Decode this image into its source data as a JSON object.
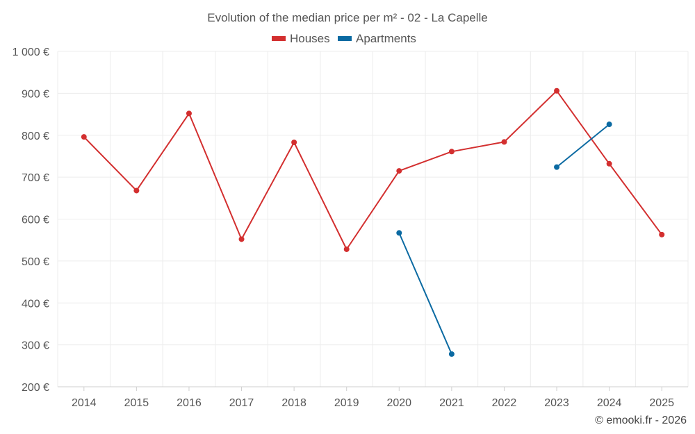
{
  "chart_data": {
    "type": "line",
    "title": "Evolution of the median price per m² - 02 - La Capelle",
    "categories": [
      "2014",
      "2015",
      "2016",
      "2017",
      "2018",
      "2019",
      "2020",
      "2021",
      "2022",
      "2023",
      "2024",
      "2025"
    ],
    "series": [
      {
        "name": "Houses",
        "color": "#d32f2f",
        "values": [
          796,
          668,
          852,
          552,
          783,
          528,
          715,
          761,
          784,
          906,
          732,
          563
        ]
      },
      {
        "name": "Apartments",
        "color": "#0b6aa2",
        "values": [
          null,
          null,
          null,
          null,
          null,
          null,
          567,
          278,
          null,
          724,
          826,
          null
        ]
      }
    ],
    "y_ticks": [
      {
        "value": 200,
        "label": "200 €"
      },
      {
        "value": 300,
        "label": "300 €"
      },
      {
        "value": 400,
        "label": "400 €"
      },
      {
        "value": 500,
        "label": "500 €"
      },
      {
        "value": 600,
        "label": "600 €"
      },
      {
        "value": 700,
        "label": "700 €"
      },
      {
        "value": 800,
        "label": "800 €"
      },
      {
        "value": 900,
        "label": "900 €"
      },
      {
        "value": 1000,
        "label": "1 000 €"
      }
    ],
    "ylim": [
      200,
      1000
    ],
    "xlabel": "",
    "ylabel": "",
    "legend_position": "top-center",
    "grid": true
  },
  "footer": "© emooki.fr - 2026"
}
